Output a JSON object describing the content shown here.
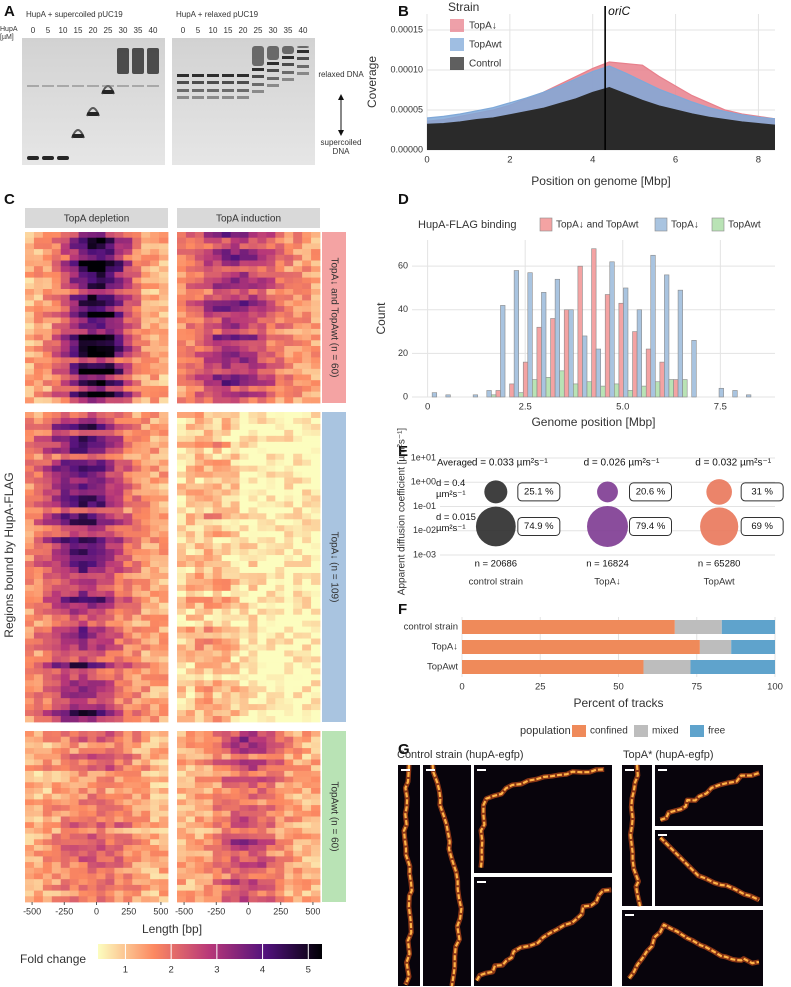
{
  "panel_labels": [
    "A",
    "B",
    "C",
    "D",
    "E",
    "F",
    "G"
  ],
  "gel": {
    "titles": [
      "HupA + supercoiled pUC19",
      "HupA + relaxed pUC19"
    ],
    "unit_label": "HupA [µM]",
    "lanes": [
      0,
      5,
      10,
      15,
      20,
      25,
      30,
      35,
      40
    ],
    "relaxed_label": "relaxed DNA",
    "supercoiled_label": "supercoiled DNA"
  },
  "microscopy": {
    "titles": [
      "Control strain (hupA-egfp)",
      "TopA* (hupA-egfp)"
    ]
  },
  "chart_data": [
    {
      "type": "area",
      "legend_title": "Strain",
      "x": [
        0,
        0.4,
        0.8,
        1.2,
        1.6,
        2,
        2.4,
        2.8,
        3.2,
        3.6,
        4,
        4.4,
        4.8,
        5.2,
        5.6,
        6,
        6.4,
        6.8,
        7.2,
        7.6,
        8,
        8.4
      ],
      "series": [
        {
          "name": "TopA↓",
          "color": "#e8808c",
          "values": [
            3.6e-05,
            3.8e-05,
            4.2e-05,
            4.6e-05,
            5e-05,
            5.6e-05,
            6.4e-05,
            7.2e-05,
            8.2e-05,
            9.2e-05,
            0.000102,
            0.00011,
            0.000108,
            0.000106,
            9.2e-05,
            8e-05,
            6.8e-05,
            5.9e-05,
            5e-05,
            4.5e-05,
            4.2e-05,
            3.9e-05
          ]
        },
        {
          "name": "TopAwt",
          "color": "#7fa8d8",
          "values": [
            4e-05,
            4.2e-05,
            4.5e-05,
            4.9e-05,
            5.3e-05,
            5.9e-05,
            6.5e-05,
            7.2e-05,
            8e-05,
            8.9e-05,
            9.8e-05,
            0.000105,
            9.6e-05,
            8.6e-05,
            7.6e-05,
            6.8e-05,
            6e-05,
            5.3e-05,
            4.8e-05,
            4.4e-05,
            4.1e-05,
            3.9e-05
          ]
        },
        {
          "name": "Control",
          "color": "#2a2a2a",
          "values": [
            3.2e-05,
            3.3e-05,
            3.5e-05,
            3.8e-05,
            4e-05,
            4.4e-05,
            4.8e-05,
            5.2e-05,
            5.8e-05,
            6.4e-05,
            7.2e-05,
            7.8e-05,
            7e-05,
            6.2e-05,
            5.5e-05,
            5e-05,
            4.5e-05,
            4.1e-05,
            3.8e-05,
            3.5e-05,
            3.3e-05,
            3.1e-05
          ]
        }
      ],
      "xlim": [
        0,
        8.4
      ],
      "xticks": [
        0,
        2,
        4,
        6,
        8
      ],
      "ylim": [
        0,
        0.00017
      ],
      "yticks": [
        {
          "value": 0,
          "label": "0.00000"
        },
        {
          "value": 5e-05,
          "label": "0.00005"
        },
        {
          "value": 0.0001,
          "label": "0.00010"
        },
        {
          "value": 0.00015,
          "label": "0.00015"
        }
      ],
      "xlabel": "Position on genome [Mbp]",
      "ylabel": "Coverage",
      "annotations": [
        {
          "text": "oriC",
          "x": 4.3
        }
      ],
      "grid": true
    },
    {
      "type": "heatmap",
      "facets": [
        "TopA depletion",
        "TopA induction"
      ],
      "row_groups": [
        "TopA↓ and TopAwt (n = 60)",
        "TopA↓ (n = 109)",
        "TopAwt (n = 60)"
      ],
      "row_group_colors": [
        "#f4a3a3",
        "#a9c4e0",
        "#b9e3b5"
      ],
      "ylabel": "Regions bound by HupA-FLAG",
      "xlabel": "Length [bp]",
      "xlim": [
        -555,
        555
      ],
      "xticks": [
        -500,
        -250,
        0,
        250,
        500
      ],
      "colorbar_label": "Fold change",
      "clim": [
        0.4,
        5.3
      ],
      "cticks": [
        1,
        2,
        3,
        4,
        5
      ]
    },
    {
      "type": "histogram",
      "legend_title": "HupA-FLAG binding",
      "bins": [
        0,
        0.35,
        0.7,
        1.05,
        1.4,
        1.75,
        2.1,
        2.45,
        2.8,
        3.15,
        3.5,
        3.85,
        4.2,
        4.55,
        4.9,
        5.25,
        5.6,
        5.95,
        6.3,
        6.65,
        7,
        7.35,
        7.7,
        8.05,
        8.4
      ],
      "series": [
        {
          "name": "TopA↓ and TopAwt",
          "color": "#f4a3a3",
          "values": [
            0,
            0,
            0,
            0,
            0,
            3,
            6,
            16,
            32,
            36,
            40,
            60,
            68,
            47,
            43,
            30,
            22,
            16,
            8,
            0,
            0,
            0,
            0,
            0
          ]
        },
        {
          "name": "TopA↓",
          "color": "#a9c4e0",
          "values": [
            2,
            1,
            0,
            1,
            3,
            42,
            58,
            57,
            48,
            54,
            40,
            28,
            22,
            62,
            50,
            40,
            65,
            56,
            49,
            26,
            0,
            4,
            3,
            1
          ]
        },
        {
          "name": "TopAwt",
          "color": "#b9e3b5",
          "values": [
            0,
            0,
            0,
            0,
            1,
            0,
            2,
            8,
            9,
            12,
            6,
            7,
            5,
            6,
            3,
            5,
            7,
            8,
            8,
            0,
            0,
            0,
            0,
            0
          ]
        }
      ],
      "xlim": [
        -0.4,
        8.9
      ],
      "xticks": [
        0,
        2.5,
        {
          "value": 5,
          "label": "5.0"
        },
        7.5
      ],
      "ylim": [
        0,
        72
      ],
      "yticks": [
        0,
        20,
        40,
        60
      ],
      "xlabel": "Genome position [Mbp]",
      "ylabel": "Count",
      "grid": true
    },
    {
      "type": "bubble",
      "ylabel": "Apparent diffusion coefficient [µm²s⁻¹]",
      "ylog": true,
      "ylim": [
        0.001,
        10
      ],
      "yticks": [
        {
          "value": 10,
          "label": "1e+01"
        },
        {
          "value": 1,
          "label": "1e+00"
        },
        {
          "value": 0.1,
          "label": "1e-01"
        },
        {
          "value": 0.01,
          "label": "1e-02"
        },
        {
          "value": 0.001,
          "label": "1e-03"
        }
      ],
      "categories": [
        "control strain",
        "TopA↓",
        "TopAwt"
      ],
      "colors": [
        "#2b2b2b",
        "#7d3a91",
        "#e9775a"
      ],
      "average_label": "Average",
      "average_values": [
        "d = 0.033 µm²s⁻¹",
        "d = 0.026 µm²s⁻¹",
        "d = 0.032 µm²s⁻¹"
      ],
      "series": [
        {
          "name": "d = 0.4 µm²s⁻¹",
          "y": 0.4,
          "values": [
            25.1,
            20.6,
            31
          ],
          "value_labels": [
            "25.1 %",
            "20.6 %",
            "31 %"
          ]
        },
        {
          "name": "d = 0.015 µm²s⁻¹",
          "y": 0.015,
          "values": [
            74.9,
            79.4,
            69
          ],
          "value_labels": [
            "74.9 %",
            "79.4 %",
            "69 %"
          ]
        }
      ],
      "n_labels": [
        "n = 20686",
        "n = 16824",
        "n = 65280"
      ],
      "grid": true
    },
    {
      "type": "stacked_barh",
      "categories": [
        "control strain",
        "TopA↓",
        "TopAwt"
      ],
      "series": [
        {
          "name": "confined",
          "color": "#ef8a5a",
          "values": [
            68,
            76,
            58
          ]
        },
        {
          "name": "mixed",
          "color": "#bdbdbd",
          "values": [
            15,
            10,
            15
          ]
        },
        {
          "name": "free",
          "color": "#5fa3cc",
          "values": [
            17,
            14,
            27
          ]
        }
      ],
      "xlim": [
        0,
        100
      ],
      "xticks": [
        0,
        25,
        50,
        75,
        100
      ],
      "xlabel": "Percent of tracks",
      "legend_title": "population",
      "grid": true
    }
  ]
}
